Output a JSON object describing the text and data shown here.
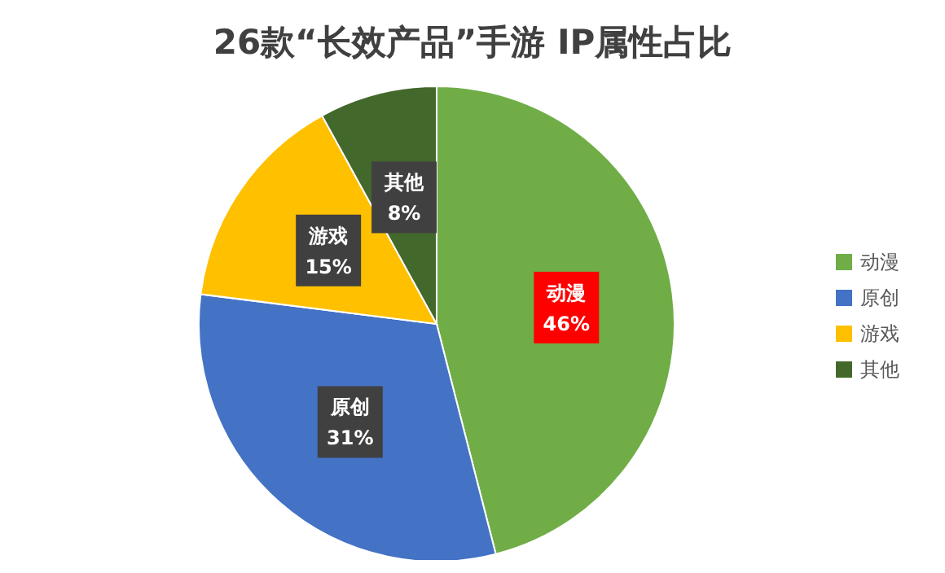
{
  "chart_data": {
    "type": "pie",
    "title": "26款“长效产品”手游 IP属性占比",
    "categories": [
      "动漫",
      "原创",
      "游戏",
      "其他"
    ],
    "values": [
      46,
      31,
      15,
      8
    ],
    "colors": [
      "#70ad47",
      "#4472c4",
      "#ffc000",
      "#43682b"
    ],
    "value_labels": [
      "46%",
      "31%",
      "15%",
      "8%"
    ],
    "legend": "right"
  }
}
